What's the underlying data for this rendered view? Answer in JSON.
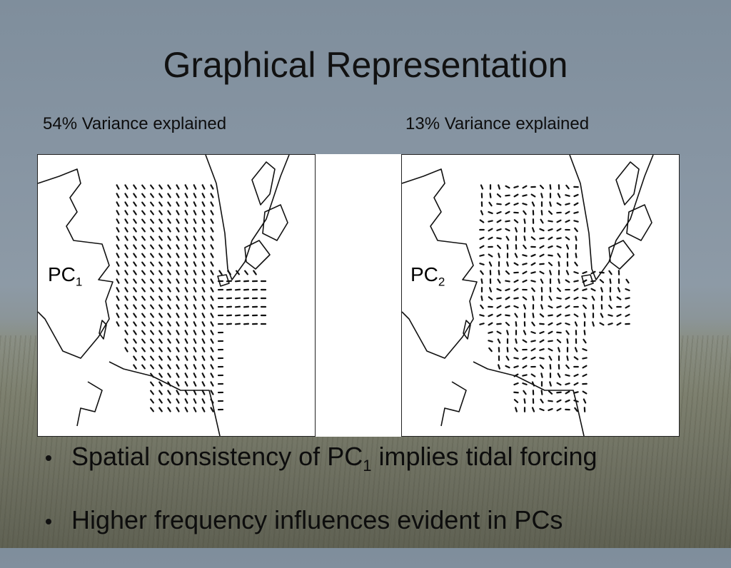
{
  "slide": {
    "title": "Graphical Representation",
    "left_caption": "54% Variance explained",
    "right_caption": "13% Variance explained",
    "maps": [
      {
        "label_main": "PC",
        "label_sub": "1"
      },
      {
        "label_main": "PC",
        "label_sub": "2"
      }
    ],
    "bullets": [
      {
        "pre": "Spatial consistency of PC",
        "sub": "1",
        "post": " implies tidal forcing"
      },
      {
        "pre": "Higher frequency influences evident in PCs",
        "sub": "",
        "post": ""
      }
    ]
  }
}
